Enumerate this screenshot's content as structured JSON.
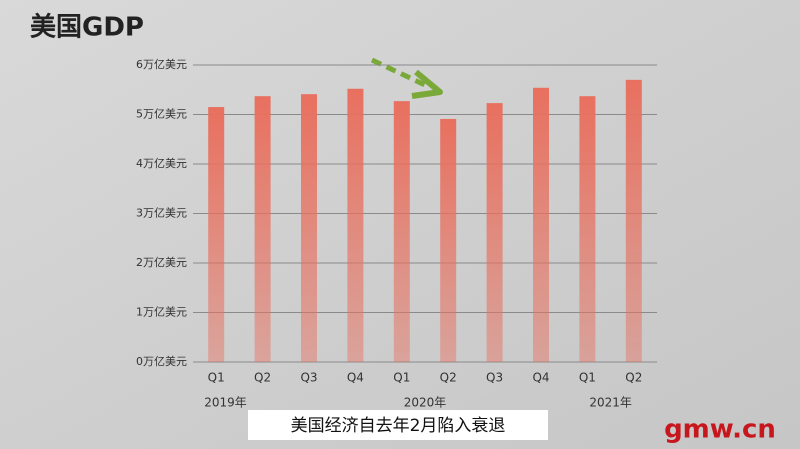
{
  "chart_data": {
    "type": "bar",
    "title": "美国GDP",
    "categories": [
      "Q1",
      "Q2",
      "Q3",
      "Q4",
      "Q1",
      "Q2",
      "Q3",
      "Q4",
      "Q1",
      "Q2"
    ],
    "year_labels": [
      "2019年",
      "2020年",
      "2021年"
    ],
    "values": [
      5.15,
      5.37,
      5.41,
      5.52,
      5.27,
      4.91,
      5.23,
      5.54,
      5.37,
      5.7
    ],
    "color": "#e8705f",
    "ylim": [
      0,
      6
    ],
    "yticks": [
      {
        "value": 0,
        "label": "0万亿美元"
      },
      {
        "value": 1,
        "label": "1万亿美元"
      },
      {
        "value": 2,
        "label": "2万亿美元"
      },
      {
        "value": 3,
        "label": "3万亿美元"
      },
      {
        "value": 4,
        "label": "4万亿美元"
      },
      {
        "value": 5,
        "label": "5万亿美元"
      },
      {
        "value": 6,
        "label": "6万亿美元"
      }
    ],
    "grid": true,
    "caption": "美国经济自去年2月陷入衰退",
    "watermark": "gmw.cn"
  }
}
